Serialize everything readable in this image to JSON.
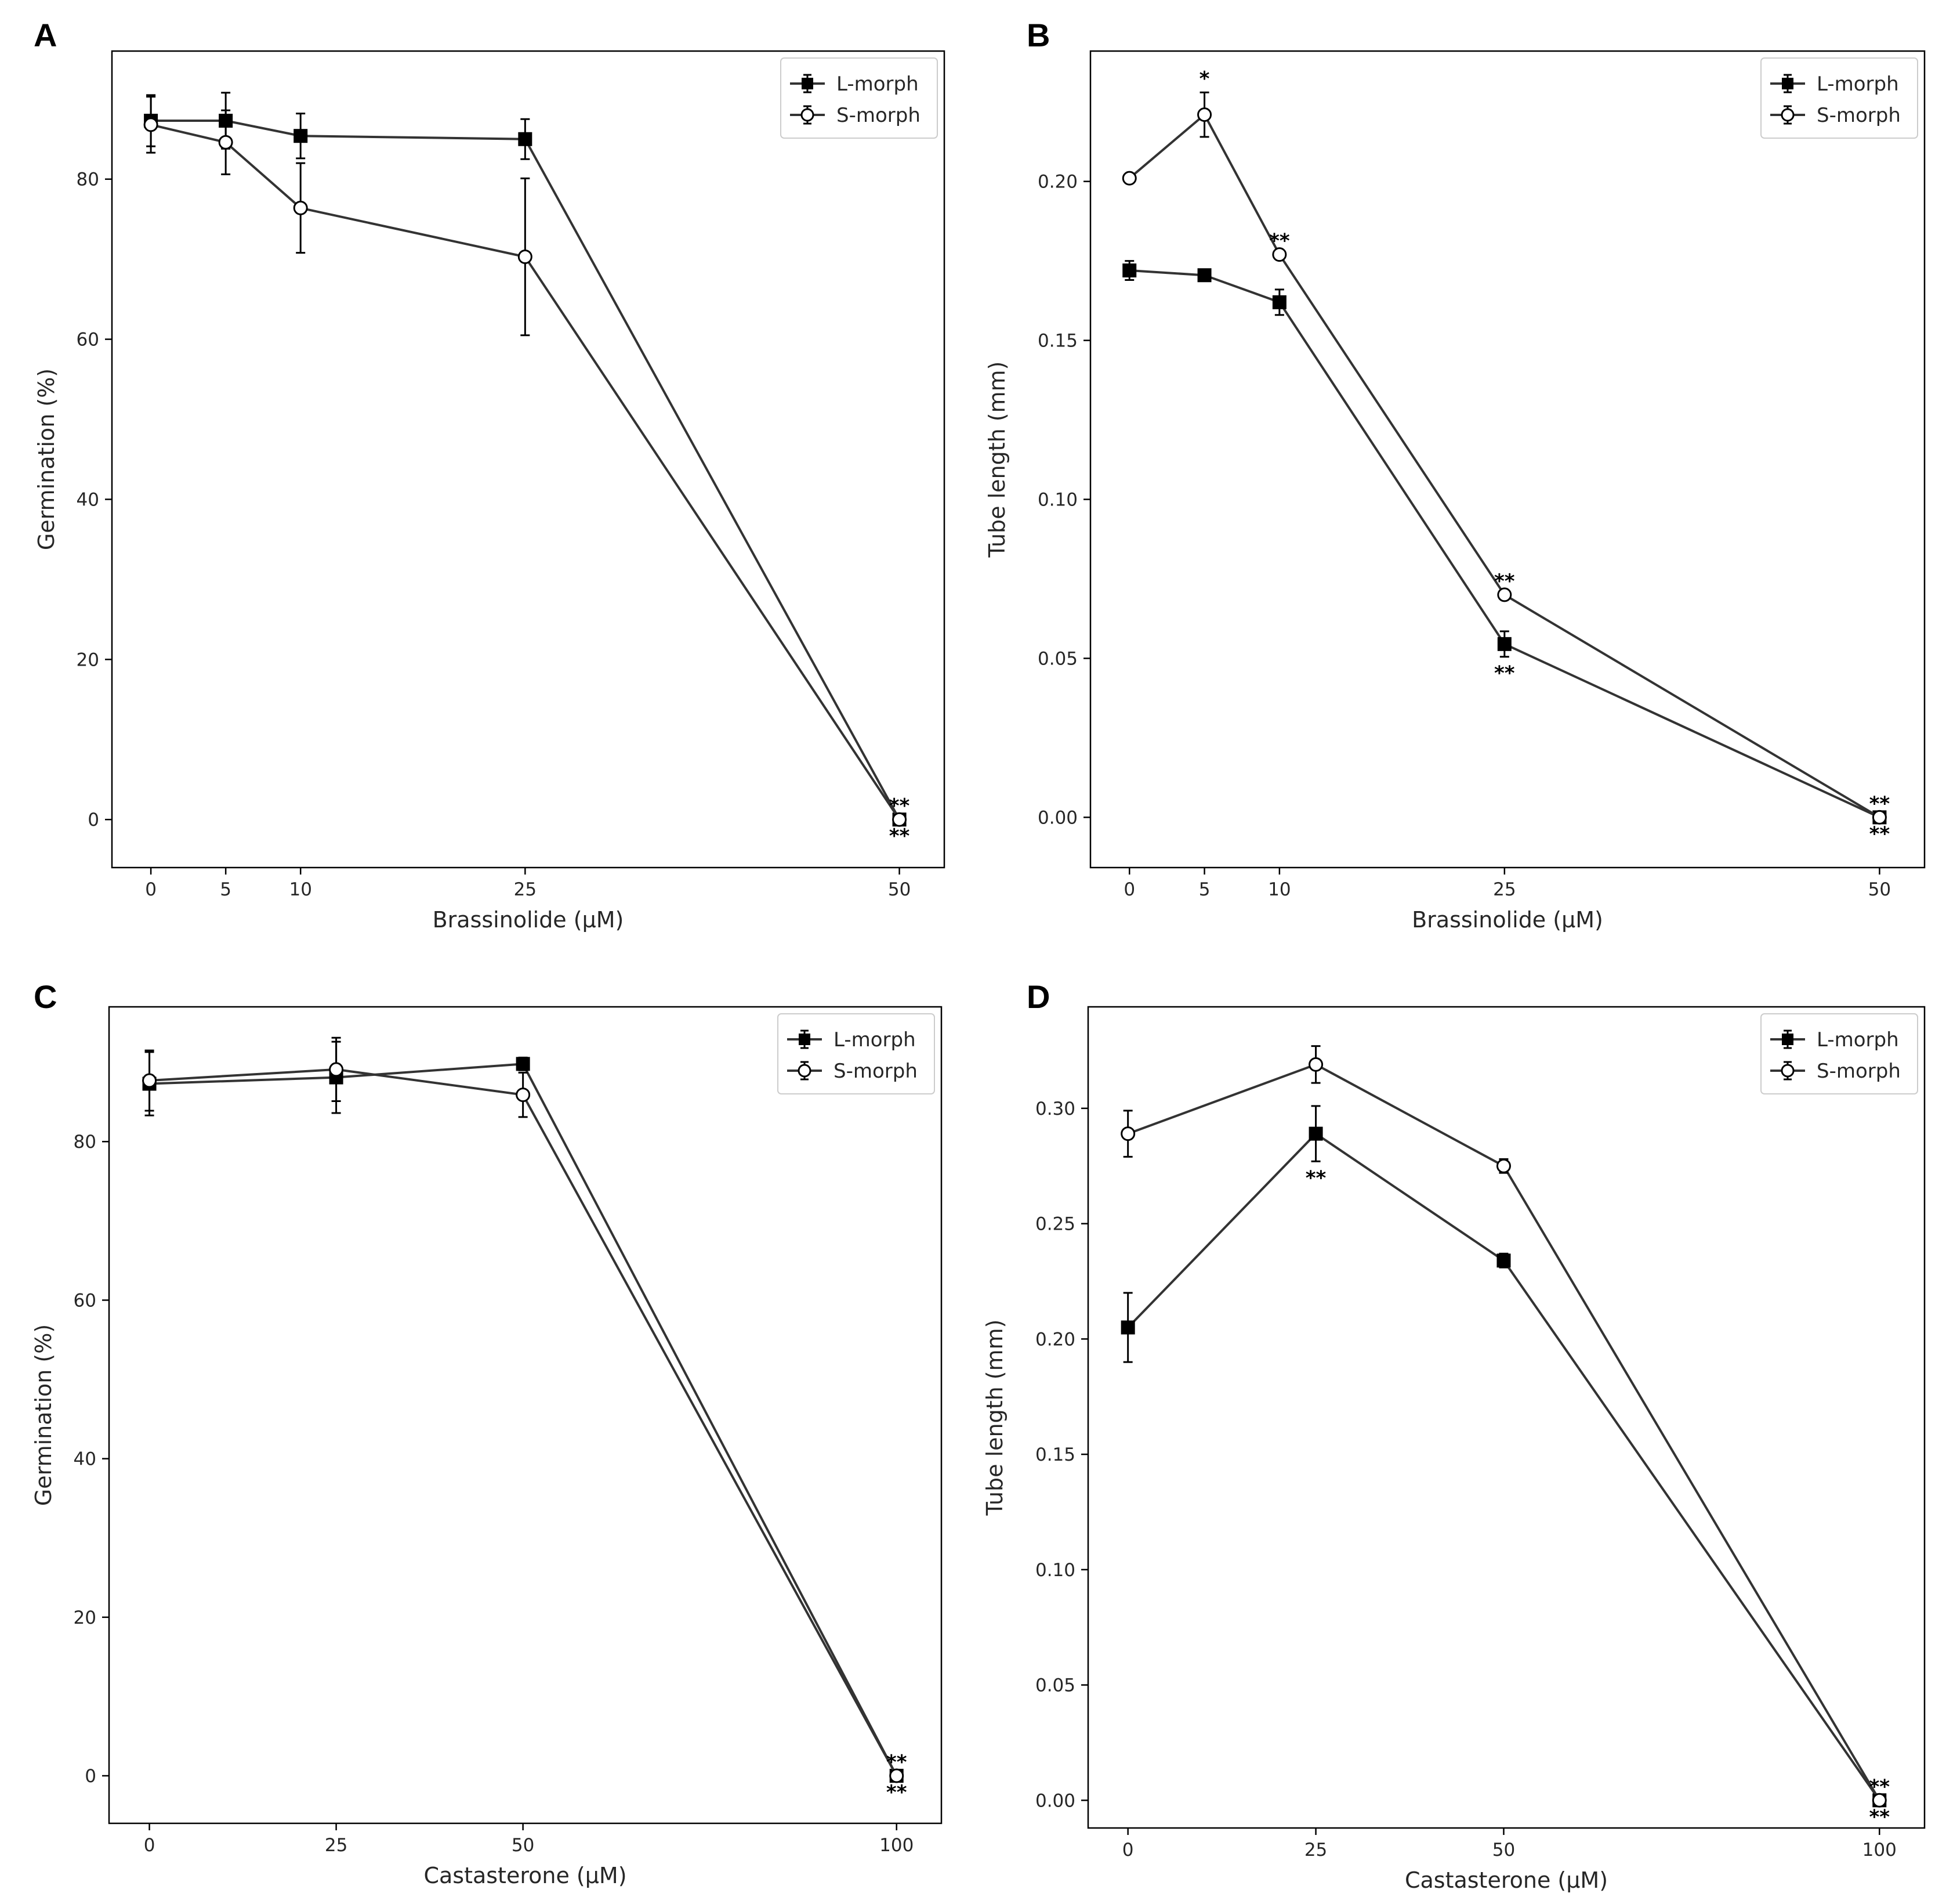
{
  "chart_data": [
    {
      "panel": "A",
      "type": "line",
      "xlabel": "Brassinolide (µM)",
      "ylabel": "Germination (%)",
      "x_ticks": [
        0,
        5,
        10,
        25,
        50
      ],
      "y_ticks": [
        0,
        20,
        40,
        60,
        80
      ],
      "y_tick_labels": [
        "0",
        "20",
        "40",
        "60",
        "80"
      ],
      "xlim": [
        -2.6,
        53
      ],
      "ylim": [
        -6,
        96
      ],
      "legend": "top-right",
      "series": [
        {
          "name": "L-morph",
          "marker": "square-filled",
          "x": [
            0,
            5,
            10,
            25,
            50
          ],
          "y": [
            87.3,
            87.3,
            85.4,
            85.0,
            0.0
          ],
          "err": [
            3.2,
            3.5,
            2.8,
            2.5,
            0.0
          ]
        },
        {
          "name": "S-morph",
          "marker": "circle-open",
          "x": [
            0,
            5,
            10,
            25,
            50
          ],
          "y": [
            86.8,
            84.6,
            76.4,
            70.3,
            0.0
          ],
          "err": [
            3.5,
            4.0,
            5.6,
            9.8,
            0.0
          ]
        }
      ],
      "annotations": [
        {
          "text": "**",
          "x": 50,
          "y": 0.0,
          "position": "above"
        },
        {
          "text": "**",
          "x": 50,
          "y": 0.0,
          "position": "below"
        }
      ]
    },
    {
      "panel": "B",
      "type": "line",
      "xlabel": "Brassinolide (µM)",
      "ylabel": "Tube length (mm)",
      "x_ticks": [
        0,
        5,
        10,
        25,
        50
      ],
      "y_ticks": [
        0,
        0.05,
        0.1,
        0.15,
        0.2
      ],
      "y_tick_labels": [
        "0.00",
        "0.05",
        "0.10",
        "0.15",
        "0.20"
      ],
      "xlim": [
        -2.6,
        53
      ],
      "ylim": [
        -0.0158,
        0.241
      ],
      "legend": "top-right",
      "series": [
        {
          "name": "L-morph",
          "marker": "square-filled",
          "x": [
            0,
            5,
            10,
            25,
            50
          ],
          "y": [
            0.172,
            0.1705,
            0.162,
            0.0545,
            0.0
          ],
          "err": [
            0.003,
            0.001,
            0.004,
            0.004,
            0.0
          ]
        },
        {
          "name": "S-morph",
          "marker": "circle-open",
          "x": [
            0,
            5,
            10,
            25,
            50
          ],
          "y": [
            0.201,
            0.221,
            0.177,
            0.07,
            0.0
          ],
          "err": [
            0.001,
            0.007,
            0.001,
            0.001,
            0.0
          ]
        }
      ],
      "annotations": [
        {
          "text": "*",
          "x": 5,
          "y": 0.228,
          "position": "above"
        },
        {
          "text": "**",
          "x": 10,
          "y": 0.177,
          "position": "above"
        },
        {
          "text": "**",
          "x": 25,
          "y": 0.07,
          "position": "above"
        },
        {
          "text": "**",
          "x": 25,
          "y": 0.0505,
          "position": "below"
        },
        {
          "text": "**",
          "x": 50,
          "y": 0.0,
          "position": "above"
        },
        {
          "text": "**",
          "x": 50,
          "y": 0.0,
          "position": "below"
        }
      ]
    },
    {
      "panel": "C",
      "type": "line",
      "xlabel": "Castasterone (µM)",
      "ylabel": "Germination (%)",
      "x_ticks": [
        0,
        25,
        50,
        100
      ],
      "y_ticks": [
        0,
        20,
        40,
        60,
        80
      ],
      "y_tick_labels": [
        "0",
        "20",
        "40",
        "60",
        "80"
      ],
      "xlim": [
        -5.4,
        106
      ],
      "ylim": [
        -6,
        97
      ],
      "legend": "top-right",
      "series": [
        {
          "name": "L-morph",
          "marker": "square-filled",
          "x": [
            0,
            25,
            50,
            100
          ],
          "y": [
            87.3,
            88.1,
            89.8,
            0.0
          ],
          "err": [
            4.0,
            4.5,
            0.8,
            0.0
          ]
        },
        {
          "name": "S-morph",
          "marker": "circle-open",
          "x": [
            0,
            25,
            50,
            100
          ],
          "y": [
            87.7,
            89.1,
            85.9,
            0.0
          ],
          "err": [
            3.8,
            4.0,
            2.8,
            0.0
          ]
        }
      ],
      "annotations": [
        {
          "text": "**",
          "x": 100,
          "y": 0.0,
          "position": "above"
        },
        {
          "text": "**",
          "x": 100,
          "y": 0.0,
          "position": "below"
        }
      ]
    },
    {
      "panel": "D",
      "type": "line",
      "xlabel": "Castasterone (µM)",
      "ylabel": "Tube length (mm)",
      "x_ticks": [
        0,
        25,
        50,
        100
      ],
      "y_ticks": [
        0,
        0.05,
        0.1,
        0.15,
        0.2,
        0.25,
        0.3
      ],
      "y_tick_labels": [
        "0.00",
        "0.05",
        "0.10",
        "0.15",
        "0.20",
        "0.25",
        "0.30"
      ],
      "xlim": [
        -5.3,
        106
      ],
      "ylim": [
        -0.012,
        0.344
      ],
      "legend": "top-right",
      "series": [
        {
          "name": "L-morph",
          "marker": "square-filled",
          "x": [
            0,
            25,
            50,
            100
          ],
          "y": [
            0.205,
            0.289,
            0.234,
            0.0
          ],
          "err": [
            0.015,
            0.012,
            0.003,
            0.0
          ]
        },
        {
          "name": "S-morph",
          "marker": "circle-open",
          "x": [
            0,
            25,
            50,
            100
          ],
          "y": [
            0.289,
            0.319,
            0.275,
            0.0
          ],
          "err": [
            0.01,
            0.008,
            0.003,
            0.0
          ]
        }
      ],
      "annotations": [
        {
          "text": "**",
          "x": 25,
          "y": 0.277,
          "position": "below"
        },
        {
          "text": "**",
          "x": 100,
          "y": 0.0,
          "position": "above"
        },
        {
          "text": "**",
          "x": 100,
          "y": 0.0,
          "position": "below"
        }
      ]
    }
  ]
}
